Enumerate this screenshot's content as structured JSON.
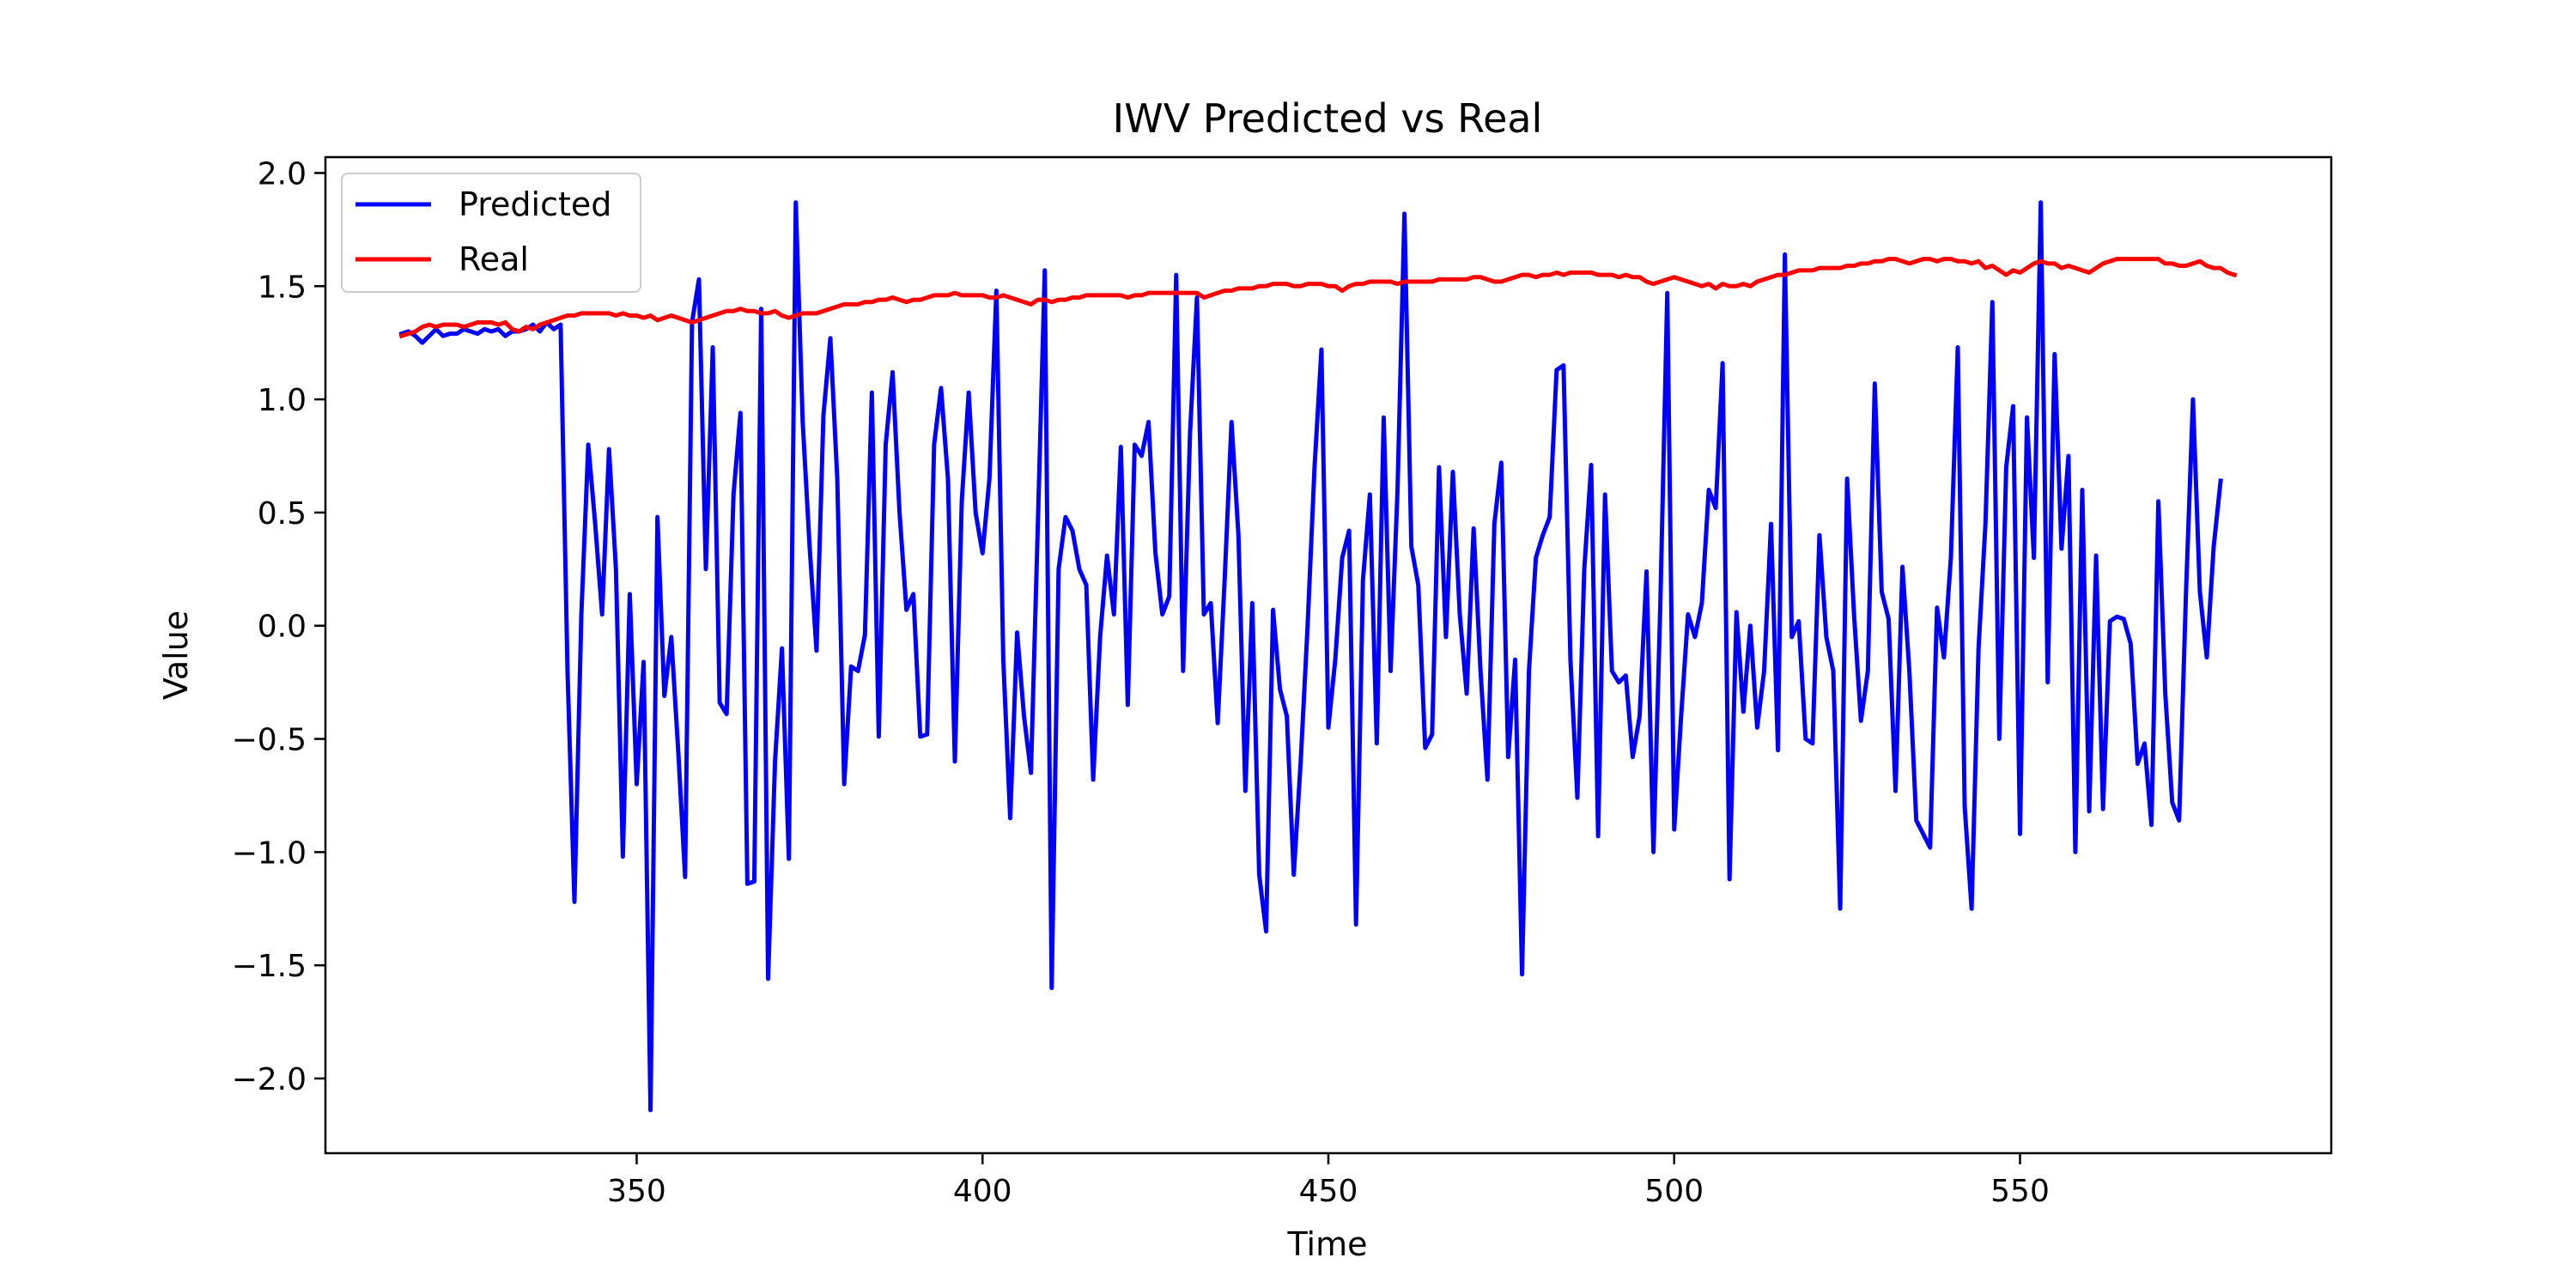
{
  "chart_data": {
    "type": "line",
    "title": "IWV Predicted vs Real",
    "xlabel": "Time",
    "ylabel": "Value",
    "xlim": [
      305,
      595
    ],
    "ylim": [
      -2.33,
      2.07
    ],
    "xticks": [
      350,
      400,
      450,
      500,
      550
    ],
    "yticks": [
      -2.0,
      -1.5,
      -1.0,
      -0.5,
      0.0,
      0.5,
      1.0,
      1.5,
      2.0
    ],
    "xtick_labels": [
      "350",
      "400",
      "450",
      "500",
      "550"
    ],
    "ytick_labels": [
      "−2.0",
      "−1.5",
      "−1.0",
      "−0.5",
      "0.0",
      "0.5",
      "1.0",
      "1.5",
      "2.0"
    ],
    "grid": false,
    "legend_position": "top-left",
    "x_start": 316,
    "x_step": 1,
    "series": [
      {
        "name": "Predicted",
        "color": "#0000ff",
        "values": [
          1.29,
          1.3,
          1.28,
          1.25,
          1.28,
          1.31,
          1.28,
          1.29,
          1.29,
          1.31,
          1.3,
          1.29,
          1.31,
          1.3,
          1.31,
          1.28,
          1.3,
          1.3,
          1.31,
          1.33,
          1.3,
          1.34,
          1.31,
          1.33,
          -0.2,
          -1.22,
          0.05,
          0.8,
          0.45,
          0.05,
          0.78,
          0.25,
          -1.02,
          0.14,
          -0.7,
          -0.16,
          -2.14,
          0.48,
          -0.31,
          -0.05,
          -0.55,
          -1.11,
          1.34,
          1.53,
          0.25,
          1.23,
          -0.34,
          -0.39,
          0.58,
          0.94,
          -1.14,
          -1.13,
          1.4,
          -1.56,
          -0.6,
          -0.1,
          -1.03,
          1.87,
          0.9,
          0.35,
          -0.11,
          0.93,
          1.27,
          0.65,
          -0.7,
          -0.18,
          -0.2,
          -0.04,
          1.03,
          -0.49,
          0.8,
          1.12,
          0.5,
          0.07,
          0.14,
          -0.49,
          -0.48,
          0.8,
          1.05,
          0.65,
          -0.6,
          0.55,
          1.03,
          0.5,
          0.32,
          0.65,
          1.48,
          -0.15,
          -0.85,
          -0.03,
          -0.4,
          -0.65,
          0.45,
          1.57,
          -1.6,
          0.25,
          0.48,
          0.42,
          0.25,
          0.18,
          -0.68,
          -0.05,
          0.31,
          0.05,
          0.79,
          -0.35,
          0.8,
          0.75,
          0.9,
          0.32,
          0.05,
          0.13,
          1.55,
          -0.2,
          0.85,
          1.45,
          0.05,
          0.1,
          -0.43,
          0.2,
          0.9,
          0.4,
          -0.73,
          0.1,
          -1.1,
          -1.35,
          0.07,
          -0.28,
          -0.4,
          -1.1,
          -0.6,
          0.0,
          0.7,
          1.22,
          -0.45,
          -0.15,
          0.3,
          0.42,
          -1.32,
          0.2,
          0.58,
          -0.52,
          0.92,
          -0.2,
          0.6,
          1.82,
          0.35,
          0.18,
          -0.54,
          -0.48,
          0.7,
          -0.05,
          0.68,
          0.05,
          -0.3,
          0.43,
          -0.2,
          -0.68,
          0.45,
          0.72,
          -0.58,
          -0.15,
          -1.54,
          -0.2,
          0.3,
          0.4,
          0.48,
          1.13,
          1.15,
          -0.15,
          -0.76,
          0.25,
          0.71,
          -0.93,
          0.58,
          -0.2,
          -0.25,
          -0.22,
          -0.58,
          -0.4,
          0.24,
          -1.0,
          0.1,
          1.47,
          -0.9,
          -0.4,
          0.05,
          -0.05,
          0.1,
          0.6,
          0.52,
          1.16,
          -1.12,
          0.06,
          -0.38,
          0.0,
          -0.45,
          -0.2,
          0.45,
          -0.55,
          1.64,
          -0.05,
          0.02,
          -0.5,
          -0.52,
          0.4,
          -0.05,
          -0.2,
          -1.25,
          0.65,
          0.05,
          -0.42,
          -0.2,
          1.07,
          0.15,
          0.03,
          -0.73,
          0.26,
          -0.2,
          -0.86,
          -0.92,
          -0.98,
          0.08,
          -0.14,
          0.3,
          1.23,
          -0.8,
          -1.25,
          -0.1,
          0.45,
          1.43,
          -0.5,
          0.7,
          0.97,
          -0.92,
          0.92,
          0.3,
          1.87,
          -0.25,
          1.2,
          0.34,
          0.75,
          -1.0,
          0.6,
          -0.82,
          0.31,
          -0.81,
          0.02,
          0.04,
          0.03,
          -0.08,
          -0.61,
          -0.52,
          -0.88,
          0.55,
          -0.3,
          -0.78,
          -0.86,
          0.15,
          1.0,
          0.15,
          -0.14,
          0.35,
          0.64
        ]
      },
      {
        "name": "Real",
        "color": "#ff0000",
        "values": [
          1.28,
          1.29,
          1.3,
          1.32,
          1.33,
          1.32,
          1.33,
          1.33,
          1.33,
          1.32,
          1.33,
          1.34,
          1.34,
          1.34,
          1.33,
          1.34,
          1.31,
          1.3,
          1.32,
          1.31,
          1.33,
          1.34,
          1.35,
          1.36,
          1.37,
          1.37,
          1.38,
          1.38,
          1.38,
          1.38,
          1.38,
          1.37,
          1.38,
          1.37,
          1.37,
          1.36,
          1.37,
          1.35,
          1.36,
          1.37,
          1.36,
          1.35,
          1.34,
          1.35,
          1.36,
          1.37,
          1.38,
          1.39,
          1.39,
          1.4,
          1.39,
          1.39,
          1.38,
          1.38,
          1.39,
          1.37,
          1.36,
          1.37,
          1.38,
          1.38,
          1.38,
          1.39,
          1.4,
          1.41,
          1.42,
          1.42,
          1.42,
          1.43,
          1.43,
          1.44,
          1.44,
          1.45,
          1.44,
          1.43,
          1.44,
          1.44,
          1.45,
          1.46,
          1.46,
          1.46,
          1.47,
          1.46,
          1.46,
          1.46,
          1.46,
          1.45,
          1.45,
          1.46,
          1.45,
          1.44,
          1.43,
          1.42,
          1.44,
          1.44,
          1.43,
          1.44,
          1.44,
          1.45,
          1.45,
          1.46,
          1.46,
          1.46,
          1.46,
          1.46,
          1.46,
          1.45,
          1.46,
          1.46,
          1.47,
          1.47,
          1.47,
          1.47,
          1.47,
          1.47,
          1.47,
          1.47,
          1.45,
          1.46,
          1.47,
          1.48,
          1.48,
          1.49,
          1.49,
          1.49,
          1.5,
          1.5,
          1.51,
          1.51,
          1.51,
          1.5,
          1.5,
          1.51,
          1.51,
          1.51,
          1.5,
          1.5,
          1.48,
          1.5,
          1.51,
          1.51,
          1.52,
          1.52,
          1.52,
          1.52,
          1.51,
          1.52,
          1.52,
          1.52,
          1.52,
          1.52,
          1.53,
          1.53,
          1.53,
          1.53,
          1.53,
          1.54,
          1.54,
          1.53,
          1.52,
          1.52,
          1.53,
          1.54,
          1.55,
          1.55,
          1.54,
          1.55,
          1.55,
          1.56,
          1.55,
          1.56,
          1.56,
          1.56,
          1.56,
          1.55,
          1.55,
          1.55,
          1.54,
          1.55,
          1.54,
          1.54,
          1.52,
          1.51,
          1.52,
          1.53,
          1.54,
          1.53,
          1.52,
          1.51,
          1.5,
          1.51,
          1.49,
          1.51,
          1.5,
          1.5,
          1.51,
          1.5,
          1.52,
          1.53,
          1.54,
          1.55,
          1.55,
          1.56,
          1.57,
          1.57,
          1.57,
          1.58,
          1.58,
          1.58,
          1.58,
          1.59,
          1.59,
          1.6,
          1.6,
          1.61,
          1.61,
          1.62,
          1.62,
          1.61,
          1.6,
          1.61,
          1.62,
          1.62,
          1.61,
          1.62,
          1.62,
          1.61,
          1.61,
          1.6,
          1.61,
          1.58,
          1.59,
          1.57,
          1.55,
          1.57,
          1.56,
          1.58,
          1.6,
          1.61,
          1.6,
          1.6,
          1.58,
          1.59,
          1.58,
          1.57,
          1.56,
          1.58,
          1.6,
          1.61,
          1.62,
          1.62,
          1.62,
          1.62,
          1.62,
          1.62,
          1.62,
          1.6,
          1.6,
          1.59,
          1.59,
          1.6,
          1.61,
          1.59,
          1.58,
          1.58,
          1.56,
          1.55
        ]
      }
    ]
  }
}
